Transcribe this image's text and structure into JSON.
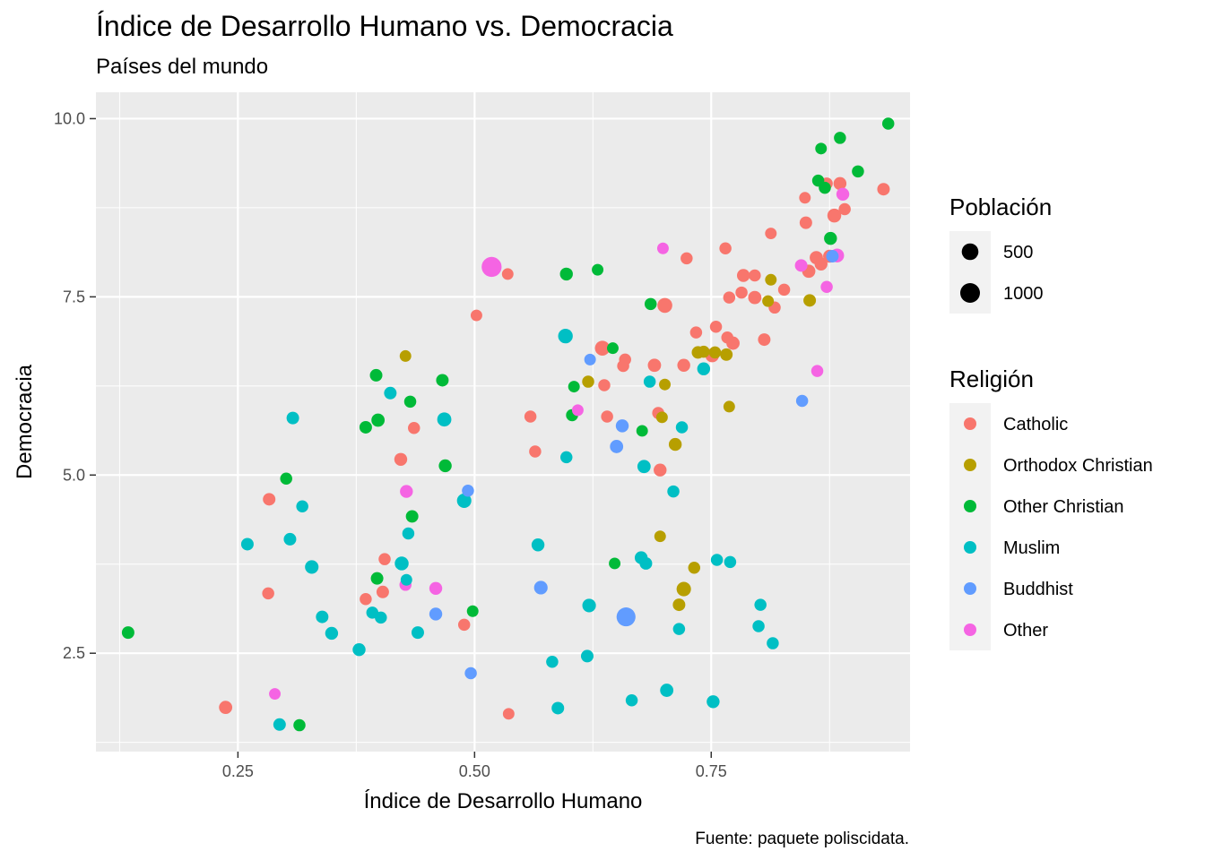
{
  "chart_data": {
    "type": "scatter",
    "title": "Índice de Desarrollo Humano vs. Democracia",
    "subtitle": "Países del mundo",
    "xlabel": "Índice de Desarrollo Humano",
    "ylabel": "Democracia",
    "caption": "Fuente: paquete poliscidata.",
    "xlim": [
      0.1,
      0.96
    ],
    "ylim": [
      1.12,
      10.37
    ],
    "x_ticks": [
      0.25,
      0.5,
      0.75
    ],
    "x_tick_labels": [
      "0.25",
      "0.50",
      "0.75"
    ],
    "y_ticks": [
      2.5,
      5.0,
      7.5,
      10.0
    ],
    "y_tick_labels": [
      "2.5",
      "5.0",
      "7.5",
      "10.0"
    ],
    "grid": true,
    "size_legend": {
      "title": "Población",
      "entries": [
        {
          "label": "500",
          "value": 500
        },
        {
          "label": "1000",
          "value": 1000
        }
      ]
    },
    "color_legend": {
      "title": "Religión",
      "placement": "right"
    },
    "series": [
      {
        "name": "Catholic",
        "color": "#F8766D",
        "points": [
          [
            0.237,
            1.74,
            30
          ],
          [
            0.283,
            4.66,
            20
          ],
          [
            0.282,
            3.34,
            15
          ],
          [
            0.385,
            3.26,
            15
          ],
          [
            0.403,
            3.36,
            20
          ],
          [
            0.405,
            3.82,
            15
          ],
          [
            0.422,
            5.22,
            25
          ],
          [
            0.436,
            5.66,
            15
          ],
          [
            0.489,
            2.9,
            15
          ],
          [
            0.502,
            7.24,
            10
          ],
          [
            0.535,
            7.82,
            10
          ],
          [
            0.536,
            1.65,
            10
          ],
          [
            0.559,
            5.82,
            15
          ],
          [
            0.564,
            5.33,
            15
          ],
          [
            0.635,
            6.78,
            60
          ],
          [
            0.637,
            6.26,
            15
          ],
          [
            0.64,
            5.82,
            15
          ],
          [
            0.657,
            6.53,
            15
          ],
          [
            0.659,
            6.62,
            15
          ],
          [
            0.69,
            6.54,
            30
          ],
          [
            0.694,
            5.87,
            15
          ],
          [
            0.696,
            5.07,
            25
          ],
          [
            0.701,
            7.38,
            60
          ],
          [
            0.721,
            6.54,
            25
          ],
          [
            0.724,
            8.04,
            15
          ],
          [
            0.734,
            7.0,
            15
          ],
          [
            0.751,
            6.68,
            40
          ],
          [
            0.755,
            7.08,
            15
          ],
          [
            0.765,
            8.18,
            15
          ],
          [
            0.767,
            6.93,
            15
          ],
          [
            0.769,
            7.49,
            15
          ],
          [
            0.773,
            6.85,
            30
          ],
          [
            0.782,
            7.56,
            15
          ],
          [
            0.784,
            7.8,
            25
          ],
          [
            0.796,
            7.8,
            15
          ],
          [
            0.796,
            7.49,
            30
          ],
          [
            0.806,
            6.9,
            20
          ],
          [
            0.813,
            8.39,
            10
          ],
          [
            0.817,
            7.35,
            15
          ],
          [
            0.827,
            7.6,
            15
          ],
          [
            0.849,
            8.89,
            10
          ],
          [
            0.85,
            8.54,
            20
          ],
          [
            0.853,
            7.86,
            30
          ],
          [
            0.861,
            8.05,
            30
          ],
          [
            0.866,
            7.96,
            25
          ],
          [
            0.872,
            9.09,
            15
          ],
          [
            0.88,
            8.64,
            40
          ],
          [
            0.886,
            9.09,
            25
          ],
          [
            0.891,
            8.73,
            15
          ],
          [
            0.932,
            9.01,
            20
          ],
          [
            0.875,
            8.07,
            25
          ]
        ]
      },
      {
        "name": "Orthodox Christian",
        "color": "#B79F00",
        "points": [
          [
            0.427,
            6.67,
            10
          ],
          [
            0.62,
            6.31,
            15
          ],
          [
            0.696,
            4.14,
            10
          ],
          [
            0.698,
            5.81,
            10
          ],
          [
            0.701,
            6.27,
            10
          ],
          [
            0.712,
            5.43,
            25
          ],
          [
            0.716,
            3.18,
            20
          ],
          [
            0.721,
            3.4,
            50
          ],
          [
            0.732,
            3.7,
            15
          ],
          [
            0.736,
            6.72,
            20
          ],
          [
            0.742,
            6.73,
            15
          ],
          [
            0.754,
            6.72,
            15
          ],
          [
            0.766,
            6.69,
            20
          ],
          [
            0.769,
            5.96,
            10
          ],
          [
            0.81,
            7.44,
            10
          ],
          [
            0.813,
            7.74,
            10
          ],
          [
            0.854,
            7.45,
            20
          ]
        ]
      },
      {
        "name": "Other Christian",
        "color": "#00BA38",
        "points": [
          [
            0.134,
            2.79,
            20
          ],
          [
            0.301,
            4.95,
            15
          ],
          [
            0.315,
            1.49,
            15
          ],
          [
            0.385,
            5.67,
            20
          ],
          [
            0.396,
            6.4,
            20
          ],
          [
            0.397,
            3.55,
            20
          ],
          [
            0.398,
            5.77,
            30
          ],
          [
            0.432,
            6.03,
            15
          ],
          [
            0.434,
            4.42,
            20
          ],
          [
            0.466,
            6.33,
            20
          ],
          [
            0.469,
            5.13,
            25
          ],
          [
            0.498,
            3.09,
            10
          ],
          [
            0.597,
            7.82,
            25
          ],
          [
            0.603,
            5.84,
            15
          ],
          [
            0.605,
            6.24,
            10
          ],
          [
            0.63,
            7.88,
            10
          ],
          [
            0.646,
            6.78,
            10
          ],
          [
            0.648,
            3.76,
            10
          ],
          [
            0.677,
            5.62,
            10
          ],
          [
            0.686,
            7.4,
            15
          ],
          [
            0.863,
            9.13,
            15
          ],
          [
            0.866,
            9.58,
            10
          ],
          [
            0.87,
            9.03,
            15
          ],
          [
            0.876,
            8.32,
            25
          ],
          [
            0.886,
            9.73,
            15
          ],
          [
            0.905,
            9.26,
            15
          ],
          [
            0.937,
            9.93,
            15
          ]
        ]
      },
      {
        "name": "Muslim",
        "color": "#00BFC4",
        "points": [
          [
            0.26,
            4.03,
            20
          ],
          [
            0.294,
            1.5,
            20
          ],
          [
            0.305,
            4.1,
            20
          ],
          [
            0.308,
            5.8,
            20
          ],
          [
            0.318,
            4.56,
            15
          ],
          [
            0.328,
            3.71,
            35
          ],
          [
            0.339,
            3.01,
            20
          ],
          [
            0.349,
            2.78,
            25
          ],
          [
            0.378,
            2.55,
            25
          ],
          [
            0.392,
            3.07,
            15
          ],
          [
            0.401,
            3.0,
            15
          ],
          [
            0.411,
            6.15,
            20
          ],
          [
            0.423,
            3.76,
            40
          ],
          [
            0.428,
            3.53,
            10
          ],
          [
            0.43,
            4.18,
            15
          ],
          [
            0.44,
            2.79,
            20
          ],
          [
            0.468,
            5.78,
            45
          ],
          [
            0.489,
            4.64,
            50
          ],
          [
            0.567,
            4.02,
            25
          ],
          [
            0.582,
            2.38,
            15
          ],
          [
            0.588,
            1.73,
            20
          ],
          [
            0.597,
            5.25,
            15
          ],
          [
            0.596,
            6.95,
            55
          ],
          [
            0.619,
            2.46,
            20
          ],
          [
            0.621,
            3.17,
            35
          ],
          [
            0.666,
            1.84,
            15
          ],
          [
            0.676,
            3.84,
            25
          ],
          [
            0.679,
            5.12,
            30
          ],
          [
            0.681,
            3.76,
            20
          ],
          [
            0.685,
            6.31,
            15
          ],
          [
            0.703,
            1.98,
            30
          ],
          [
            0.71,
            4.77,
            15
          ],
          [
            0.716,
            2.84,
            15
          ],
          [
            0.719,
            5.67,
            15
          ],
          [
            0.742,
            6.49,
            25
          ],
          [
            0.752,
            1.82,
            25
          ],
          [
            0.756,
            3.81,
            15
          ],
          [
            0.77,
            3.78,
            15
          ],
          [
            0.8,
            2.88,
            15
          ],
          [
            0.802,
            3.18,
            15
          ],
          [
            0.815,
            2.64,
            15
          ]
        ]
      },
      {
        "name": "Buddhist",
        "color": "#619CFF",
        "points": [
          [
            0.459,
            3.05,
            25
          ],
          [
            0.493,
            4.78,
            15
          ],
          [
            0.496,
            2.22,
            15
          ],
          [
            0.57,
            3.42,
            35
          ],
          [
            0.622,
            6.62,
            10
          ],
          [
            0.65,
            5.4,
            30
          ],
          [
            0.656,
            5.69,
            25
          ],
          [
            0.66,
            3.01,
            180
          ],
          [
            0.846,
            6.04,
            15
          ],
          [
            0.878,
            8.07,
            20
          ]
        ]
      },
      {
        "name": "Other",
        "color": "#F564E3",
        "points": [
          [
            0.289,
            1.93,
            10
          ],
          [
            0.427,
            3.46,
            15
          ],
          [
            0.428,
            4.77,
            25
          ],
          [
            0.459,
            3.41,
            25
          ],
          [
            0.518,
            7.92,
            220
          ],
          [
            0.609,
            5.91,
            10
          ],
          [
            0.699,
            8.18,
            10
          ],
          [
            0.845,
            7.94,
            20
          ],
          [
            0.862,
            6.46,
            15
          ],
          [
            0.872,
            7.64,
            15
          ],
          [
            0.883,
            8.08,
            40
          ],
          [
            0.889,
            8.94,
            25
          ]
        ]
      }
    ]
  }
}
